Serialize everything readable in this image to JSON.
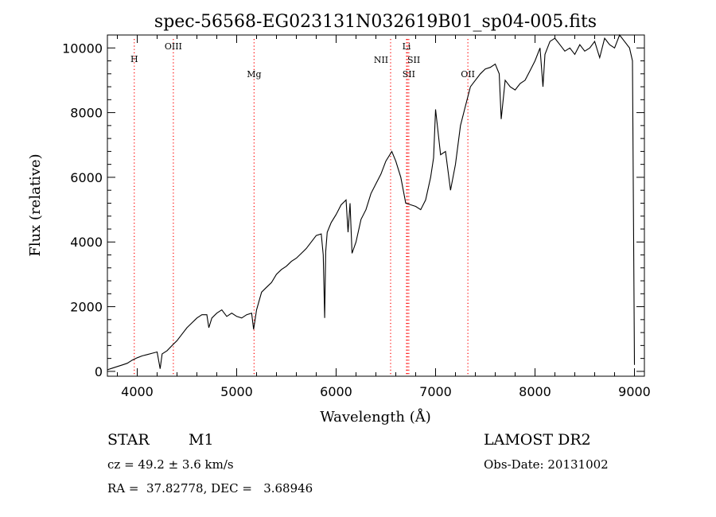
{
  "chart_data": {
    "type": "line",
    "title": "spec-56568-EG023131N032619B01_sp04-005.fits",
    "xlabel": "Wavelength (Å)",
    "ylabel": "Flux (relative)",
    "xlim": [
      3700,
      9100
    ],
    "ylim": [
      -150,
      10400
    ],
    "xticks": [
      4000,
      5000,
      6000,
      7000,
      8000,
      9000
    ],
    "yticks": [
      0,
      2000,
      4000,
      6000,
      8000,
      10000
    ],
    "line_color": "#000000",
    "marker_color": "#ff0000",
    "lines": [
      {
        "label": "H",
        "x": 3970,
        "color": "#ff0000"
      },
      {
        "label": "OIII",
        "x": 4363,
        "color": "#ff0000"
      },
      {
        "label": "Mg",
        "x": 5175,
        "color": "#ff0000"
      },
      {
        "label": "NII",
        "x": 6548,
        "color": "#ff0000"
      },
      {
        "label": "Li",
        "x": 6708,
        "color": "#ff0000"
      },
      {
        "label": "SII",
        "x": 6717,
        "color": "#ff0000"
      },
      {
        "label": "SII",
        "x": 6731,
        "color": "#ff0000"
      },
      {
        "label": "OII",
        "x": 7325,
        "color": "#ff0000"
      }
    ],
    "series": [
      {
        "x": [
          3700,
          3750,
          3800,
          3850,
          3900,
          3950,
          4000,
          4050,
          4100,
          4150,
          4200,
          4230,
          4250,
          4300,
          4350,
          4400,
          4450,
          4500,
          4550,
          4600,
          4650,
          4700,
          4720,
          4750,
          4800,
          4850,
          4900,
          4950,
          5000,
          5050,
          5100,
          5150,
          5170,
          5200,
          5250,
          5300,
          5350,
          5400,
          5450,
          5500,
          5550,
          5600,
          5650,
          5700,
          5750,
          5800,
          5850,
          5870,
          5885,
          5895,
          5910,
          5950,
          6000,
          6050,
          6100,
          6120,
          6140,
          6160,
          6200,
          6250,
          6300,
          6350,
          6400,
          6450,
          6500,
          6560,
          6600,
          6650,
          6700,
          6750,
          6800,
          6850,
          6900,
          6950,
          6980,
          7000,
          7050,
          7100,
          7150,
          7200,
          7250,
          7300,
          7350,
          7400,
          7450,
          7500,
          7550,
          7600,
          7640,
          7660,
          7700,
          7750,
          7800,
          7850,
          7900,
          7950,
          8000,
          8050,
          8080,
          8100,
          8150,
          8200,
          8250,
          8300,
          8350,
          8400,
          8450,
          8500,
          8550,
          8600,
          8650,
          8700,
          8750,
          8800,
          8850,
          8900,
          8950,
          8980,
          9000
        ],
        "y": [
          50,
          100,
          150,
          200,
          250,
          350,
          420,
          480,
          520,
          560,
          600,
          80,
          540,
          640,
          800,
          950,
          1150,
          1350,
          1500,
          1650,
          1750,
          1750,
          1350,
          1650,
          1800,
          1900,
          1700,
          1800,
          1700,
          1650,
          1750,
          1800,
          1300,
          1900,
          2450,
          2600,
          2750,
          3000,
          3150,
          3250,
          3400,
          3500,
          3650,
          3800,
          4000,
          4200,
          4250,
          3600,
          1650,
          3700,
          4300,
          4600,
          4850,
          5150,
          5300,
          4300,
          5200,
          3650,
          4000,
          4700,
          5000,
          5500,
          5800,
          6100,
          6500,
          6800,
          6500,
          6000,
          5200,
          5150,
          5100,
          5000,
          5300,
          6000,
          6600,
          8100,
          6700,
          6800,
          5600,
          6400,
          7600,
          8200,
          8800,
          9000,
          9200,
          9350,
          9400,
          9500,
          9200,
          7800,
          9000,
          8800,
          8700,
          8900,
          9000,
          9300,
          9600,
          10000,
          8800,
          9800,
          10200,
          10300,
          10100,
          9900,
          10000,
          9800,
          10100,
          9900,
          10000,
          10200,
          9700,
          10300,
          10100,
          10000,
          10400,
          10200,
          10000,
          9600,
          200
        ]
      }
    ]
  },
  "info": {
    "class": "STAR",
    "subclass": "M1",
    "survey": "LAMOST DR2",
    "cz": "cz = 49.2 ± 3.6 km/s",
    "obs_date": "Obs-Date: 20131002",
    "coords": "RA =  37.82778, DEC =   3.68946"
  }
}
